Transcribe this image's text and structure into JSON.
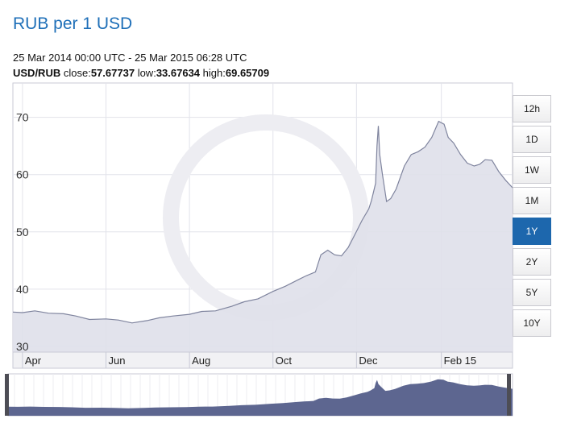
{
  "header": {
    "title": "RUB per 1 USD",
    "date_range": "25 Mar 2014 00:00 UTC - 25 Mar 2015 06:28 UTC",
    "pair": "USD/RUB",
    "close_label": "close:",
    "close_value": "57.67737",
    "low_label": "low:",
    "low_value": "33.67634",
    "high_label": "high:",
    "high_value": "69.65709"
  },
  "range_buttons": [
    {
      "label": "12h",
      "active": false
    },
    {
      "label": "1D",
      "active": false
    },
    {
      "label": "1W",
      "active": false
    },
    {
      "label": "1M",
      "active": false
    },
    {
      "label": "1Y",
      "active": true
    },
    {
      "label": "2Y",
      "active": false
    },
    {
      "label": "5Y",
      "active": false
    },
    {
      "label": "10Y",
      "active": false
    }
  ],
  "colors": {
    "title": "#1e6fb8",
    "active_button": "#1d67ad",
    "area_fill": "#dfe0ea",
    "line": "#7f849e",
    "navigator_fill": "#5d6690"
  },
  "chart_data": {
    "type": "area",
    "title": "RUB per 1 USD",
    "xlabel": "",
    "ylabel": "",
    "x_range": [
      "2014-03-25",
      "2015-03-25"
    ],
    "ylim": [
      29,
      76
    ],
    "yticks": [
      30,
      40,
      50,
      60,
      70
    ],
    "xticks": [
      {
        "label": "Apr",
        "date": "2014-04-01"
      },
      {
        "label": "Jun",
        "date": "2014-06-01"
      },
      {
        "label": "Aug",
        "date": "2014-08-01"
      },
      {
        "label": "Oct",
        "date": "2014-10-01"
      },
      {
        "label": "Dec",
        "date": "2014-12-01"
      },
      {
        "label": "Feb 15",
        "date": "2015-02-01"
      }
    ],
    "grid": true,
    "legend": "none",
    "series": [
      {
        "x": [
          "2014-03-25",
          "2014-04-01",
          "2014-04-10",
          "2014-04-20",
          "2014-05-01",
          "2014-05-10",
          "2014-05-20",
          "2014-06-01",
          "2014-06-10",
          "2014-06-20",
          "2014-07-01",
          "2014-07-10",
          "2014-07-20",
          "2014-08-01",
          "2014-08-10",
          "2014-08-20",
          "2014-09-01",
          "2014-09-10",
          "2014-09-20",
          "2014-10-01",
          "2014-10-10",
          "2014-10-20",
          "2014-10-25",
          "2014-11-01",
          "2014-11-05",
          "2014-11-10",
          "2014-11-15",
          "2014-11-20",
          "2014-11-25",
          "2014-12-01",
          "2014-12-05",
          "2014-12-10",
          "2014-12-12",
          "2014-12-15",
          "2014-12-16",
          "2014-12-17",
          "2014-12-18",
          "2014-12-20",
          "2014-12-23",
          "2014-12-26",
          "2014-12-30",
          "2015-01-05",
          "2015-01-10",
          "2015-01-15",
          "2015-01-20",
          "2015-01-25",
          "2015-01-30",
          "2015-02-03",
          "2015-02-06",
          "2015-02-10",
          "2015-02-15",
          "2015-02-20",
          "2015-02-25",
          "2015-03-01",
          "2015-03-05",
          "2015-03-10",
          "2015-03-15",
          "2015-03-20",
          "2015-03-25"
        ],
        "values": [
          36.0,
          35.9,
          36.2,
          35.8,
          35.7,
          35.3,
          34.7,
          34.8,
          34.6,
          34.1,
          34.5,
          35.0,
          35.3,
          35.6,
          36.1,
          36.2,
          37.0,
          37.8,
          38.3,
          39.6,
          40.5,
          41.7,
          42.3,
          43.0,
          46.0,
          46.8,
          46.0,
          45.8,
          47.3,
          50.1,
          52.0,
          54.0,
          55.5,
          58.5,
          65.0,
          68.5,
          63.5,
          60.0,
          55.3,
          55.8,
          57.5,
          61.5,
          63.5,
          64.0,
          64.8,
          66.5,
          69.3,
          68.8,
          66.5,
          65.5,
          63.5,
          62.0,
          61.5,
          61.8,
          62.6,
          62.5,
          60.5,
          59.0,
          57.7
        ]
      }
    ]
  }
}
